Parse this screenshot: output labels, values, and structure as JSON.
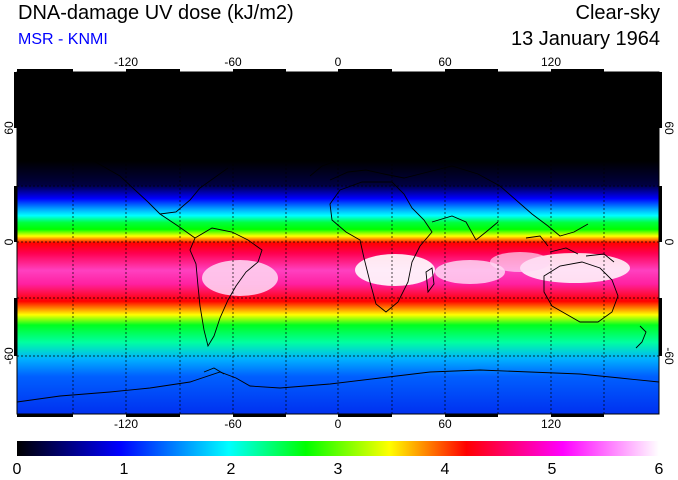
{
  "header": {
    "title": "DNA-damage UV dose (kJ/m2)",
    "subtitle": "MSR - KNMI",
    "condition": "Clear-sky",
    "date": "13 January 1964"
  },
  "map": {
    "lon_ticks": [
      "-120",
      "-60",
      "0",
      "60",
      "120"
    ],
    "lat_ticks": [
      "60",
      "0",
      "-60"
    ],
    "lat_ticks_right": [
      "60",
      "0",
      "-60"
    ]
  },
  "colorbar": {
    "labels": [
      "0",
      "1",
      "2",
      "3",
      "4",
      "5",
      "6"
    ],
    "colors": [
      "#000000",
      "#0000ff",
      "#00ffff",
      "#00ff00",
      "#ffff00",
      "#ff0000",
      "#ff00ff",
      "#ffffff"
    ]
  },
  "colors": {
    "title": "#000000",
    "subtitle": "#0000ff",
    "frame": "#000000"
  }
}
